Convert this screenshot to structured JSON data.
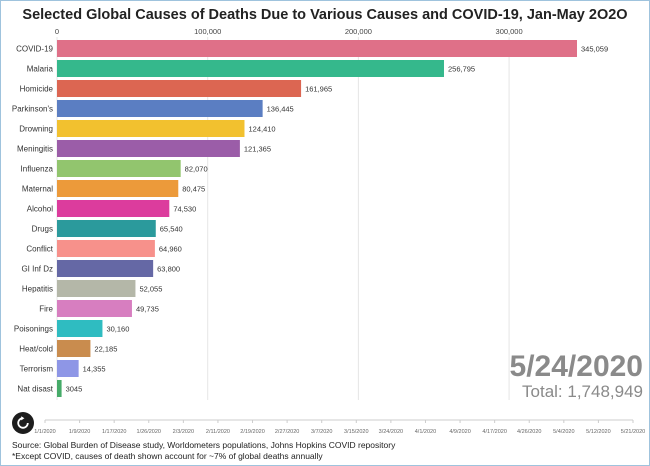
{
  "chart_data": {
    "type": "bar",
    "orientation": "horizontal",
    "title": "Selected Global Causes of Deaths Due to Various Causes and COVID-19, Jan-May 2O2O",
    "categories": [
      "COVID-19",
      "Malaria",
      "Homicide",
      "Parkinson's",
      "Drowning",
      "Meningitis",
      "Influenza",
      "Maternal",
      "Alcohol",
      "Drugs",
      "Conflict",
      "GI Inf Dz",
      "Hepatitis",
      "Fire",
      "Poisonings",
      "Heat/cold",
      "Terrorism",
      "Nat disast"
    ],
    "values": [
      345059,
      256795,
      161965,
      136445,
      124410,
      121365,
      82070,
      80475,
      74530,
      65540,
      64960,
      63800,
      52055,
      49735,
      30160,
      22185,
      14355,
      3045
    ],
    "value_labels": [
      "345,059",
      "256,795",
      "161,965",
      "136,445",
      "124,410",
      "121,365",
      "82,070",
      "80,475",
      "74,530",
      "65,540",
      "64,960",
      "63,800",
      "52,055",
      "49,735",
      "30,160",
      "22,185",
      "14,355",
      "3045"
    ],
    "colors": [
      "#df7088",
      "#35b88c",
      "#dc6652",
      "#5b7ec2",
      "#f2c12f",
      "#9b5da8",
      "#92c56e",
      "#ec9a3a",
      "#dc3c9d",
      "#2b9a9c",
      "#f7918b",
      "#6568a5",
      "#b4b7a8",
      "#d77ec0",
      "#2fbcc1",
      "#c98c4e",
      "#8e96e6",
      "#46ab69"
    ],
    "xlim": [
      0,
      345059
    ],
    "x_ticks": [
      0,
      100000,
      200000,
      300000
    ],
    "x_tick_labels": [
      "0",
      "100,000",
      "200,000",
      "300,000"
    ],
    "grid": true
  },
  "timeline": {
    "date_ticks": [
      "1/1/2020",
      "1/9/2020",
      "1/17/2020",
      "1/26/2020",
      "2/3/2020",
      "2/11/2020",
      "2/19/2020",
      "2/27/2020",
      "3/7/2020",
      "3/15/2020",
      "3/24/2020",
      "4/1/2020",
      "4/9/2020",
      "4/17/2020",
      "4/26/2020",
      "5/4/2020",
      "5/12/2020",
      "5/21/2020"
    ],
    "current_date": "5/24/2020",
    "total_label": "Total: 1,748,949"
  },
  "replay_button": {
    "icon": "replay-icon"
  },
  "source_lines": [
    "Source: Global Burden of Disease study, Worldometers populations, Johns Hopkins COVID repository",
    "*Except COVID, causes of death shown account for ~7% of global deaths annually"
  ]
}
